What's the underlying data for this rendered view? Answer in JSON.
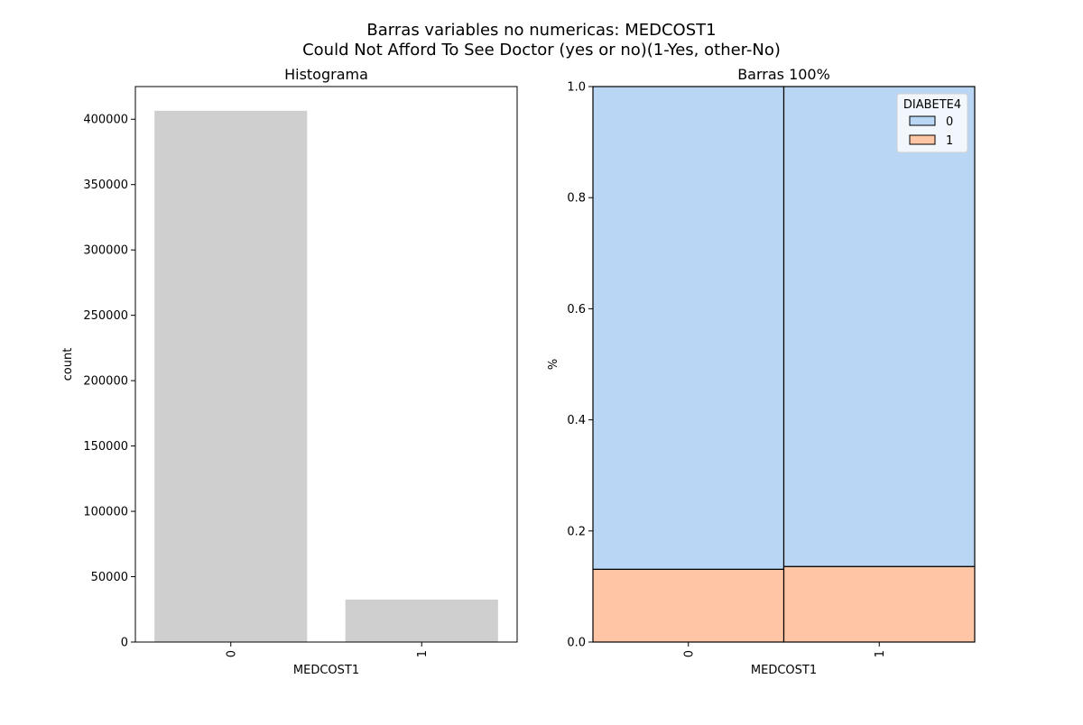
{
  "figure": {
    "title_line1": "Barras variables no numericas: MEDCOST1",
    "title_line2": "Could Not Afford To See Doctor (yes or no)(1-Yes, other-No)"
  },
  "chart_data": [
    {
      "type": "bar",
      "title": "Histograma",
      "xlabel": "MEDCOST1",
      "ylabel": "count",
      "categories": [
        "0",
        "1"
      ],
      "values": [
        406500,
        32500
      ],
      "ylim": [
        0,
        425000
      ],
      "yticks": [
        0,
        50000,
        100000,
        150000,
        200000,
        250000,
        300000,
        350000,
        400000
      ],
      "bar_color": "#cfcfcf",
      "grid": false
    },
    {
      "type": "bar",
      "stacked": true,
      "title": "Barras 100%",
      "xlabel": "MEDCOST1",
      "ylabel": "%",
      "categories": [
        "0",
        "1"
      ],
      "ylim": [
        0,
        1
      ],
      "yticks": [
        0.0,
        0.2,
        0.4,
        0.6,
        0.8,
        1.0
      ],
      "legend_title": "DIABETE4",
      "legend_position": "top-right",
      "grid": false,
      "series": [
        {
          "name": "1",
          "values": [
            0.131,
            0.136
          ],
          "color": "#ffc6a5"
        },
        {
          "name": "0",
          "values": [
            0.869,
            0.864
          ],
          "color": "#b9d7f5"
        }
      ]
    }
  ]
}
